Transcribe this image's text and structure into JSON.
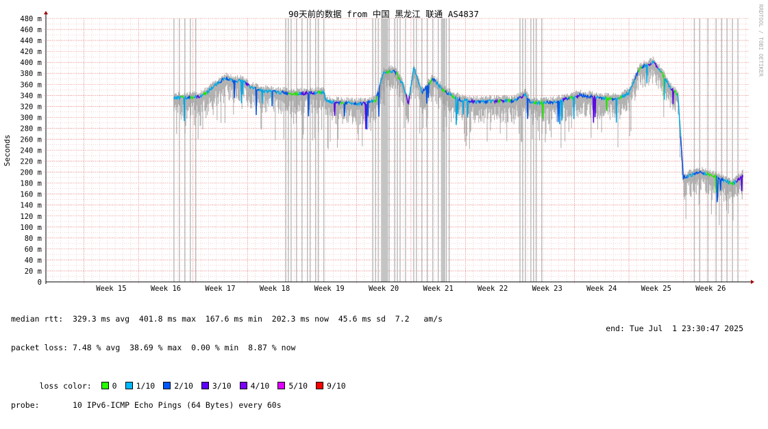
{
  "title": "90天前的数据 from 中国 黑龙江 联通 AS4837",
  "watermark": "RRDTOOL / TOBI OETIKER",
  "chart_data": {
    "type": "line",
    "title": "90天前的数据 from 中国 黑龙江 联通 AS4837",
    "ylabel": "Seconds",
    "ylim": [
      0,
      0.48
    ],
    "y_ticks": [
      {
        "v": 0,
        "label": "0"
      },
      {
        "v": 20,
        "label": "20 m"
      },
      {
        "v": 40,
        "label": "40 m"
      },
      {
        "v": 60,
        "label": "60 m"
      },
      {
        "v": 80,
        "label": "80 m"
      },
      {
        "v": 100,
        "label": "100 m"
      },
      {
        "v": 120,
        "label": "120 m"
      },
      {
        "v": 140,
        "label": "140 m"
      },
      {
        "v": 160,
        "label": "160 m"
      },
      {
        "v": 180,
        "label": "180 m"
      },
      {
        "v": 200,
        "label": "200 m"
      },
      {
        "v": 220,
        "label": "220 m"
      },
      {
        "v": 240,
        "label": "240 m"
      },
      {
        "v": 260,
        "label": "260 m"
      },
      {
        "v": 280,
        "label": "280 m"
      },
      {
        "v": 300,
        "label": "300 m"
      },
      {
        "v": 320,
        "label": "320 m"
      },
      {
        "v": 340,
        "label": "340 m"
      },
      {
        "v": 360,
        "label": "360 m"
      },
      {
        "v": 380,
        "label": "380 m"
      },
      {
        "v": 400,
        "label": "400 m"
      },
      {
        "v": 420,
        "label": "420 m"
      },
      {
        "v": 440,
        "label": "440 m"
      },
      {
        "v": 460,
        "label": "460 m"
      },
      {
        "v": 480,
        "label": "480 m"
      }
    ],
    "x_weeks": [
      15,
      16,
      17,
      18,
      19,
      20,
      21,
      22,
      23,
      24,
      25,
      26
    ],
    "x_labels": [
      "Week 15",
      "Week 16",
      "Week 17",
      "Week 18",
      "Week 19",
      "Week 20",
      "Week 21",
      "Week 22",
      "Week 23",
      "Week 24",
      "Week 25",
      "Week 26"
    ],
    "xlim_weeks": [
      14.3,
      27.2
    ],
    "median_rtt_ms": [
      [
        16.65,
        335
      ],
      [
        16.9,
        336
      ],
      [
        17.1,
        337
      ],
      [
        17.25,
        345
      ],
      [
        17.45,
        362
      ],
      [
        17.6,
        372
      ],
      [
        17.75,
        365
      ],
      [
        17.9,
        368
      ],
      [
        18.05,
        355
      ],
      [
        18.3,
        348
      ],
      [
        18.6,
        345
      ],
      [
        18.9,
        343
      ],
      [
        19.2,
        344
      ],
      [
        19.4,
        345
      ],
      [
        19.45,
        328
      ],
      [
        19.8,
        326
      ],
      [
        20.1,
        325
      ],
      [
        20.35,
        329
      ],
      [
        20.5,
        382
      ],
      [
        20.7,
        385
      ],
      [
        20.85,
        360
      ],
      [
        20.95,
        325
      ],
      [
        21.05,
        390
      ],
      [
        21.2,
        345
      ],
      [
        21.4,
        370
      ],
      [
        21.6,
        348
      ],
      [
        21.9,
        332
      ],
      [
        22.2,
        328
      ],
      [
        22.6,
        330
      ],
      [
        22.9,
        330
      ],
      [
        23.1,
        342
      ],
      [
        23.2,
        326
      ],
      [
        23.6,
        327
      ],
      [
        23.9,
        335
      ],
      [
        24.1,
        340
      ],
      [
        24.4,
        336
      ],
      [
        24.8,
        333
      ],
      [
        25.0,
        345
      ],
      [
        25.2,
        390
      ],
      [
        25.45,
        400
      ],
      [
        25.6,
        382
      ],
      [
        25.75,
        355
      ],
      [
        25.9,
        340
      ],
      [
        26.0,
        190
      ],
      [
        26.3,
        200
      ],
      [
        26.6,
        192
      ],
      [
        26.9,
        178
      ],
      [
        27.1,
        195
      ]
    ],
    "loss_spike_weeks": [
      16.65,
      16.75,
      16.85,
      16.95,
      17.05,
      18.7,
      18.75,
      18.8,
      18.9,
      19.0,
      19.1,
      19.15,
      19.25,
      19.3,
      19.4,
      20.3,
      20.35,
      20.4,
      20.5,
      20.55,
      20.6,
      20.7,
      20.75,
      20.8,
      20.9,
      21.05,
      21.1,
      21.2,
      21.3,
      21.4,
      21.5,
      21.6,
      21.65,
      21.7,
      23.0,
      23.05,
      23.1,
      23.2,
      23.25,
      23.3,
      23.4,
      26.2,
      26.3,
      26.45,
      26.6,
      26.7,
      26.8,
      26.9,
      27.0
    ],
    "loss_block_weeks": [
      [
        20.45,
        20.58
      ],
      [
        21.55,
        21.63
      ]
    ]
  },
  "legend": {
    "median_rtt": "median rtt:  329.3 ms avg  401.8 ms max  167.6 ms min  202.3 ms now  45.6 ms sd  7.2   am/s",
    "packet_loss": "packet loss: 7.48 % avg  38.69 % max  0.00 % min  8.87 % now",
    "loss_color_label": "loss color:",
    "loss_colors": [
      {
        "label": "0",
        "color": "#26ff00"
      },
      {
        "label": "1/10",
        "color": "#00b8ff"
      },
      {
        "label": "2/10",
        "color": "#0059ff"
      },
      {
        "label": "3/10",
        "color": "#5e00ff"
      },
      {
        "label": "4/10",
        "color": "#7e00ff"
      },
      {
        "label": "5/10",
        "color": "#dd00ff"
      },
      {
        "label": "9/10",
        "color": "#ff0000"
      }
    ],
    "probe": "probe:       10 IPv6-ICMP Echo Pings (64 Bytes) every 60s",
    "end": "end: Tue Jul  1 23:30:47 2025"
  }
}
